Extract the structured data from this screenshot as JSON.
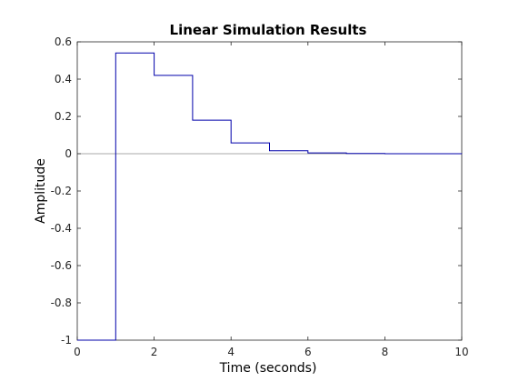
{
  "chart_data": {
    "type": "line",
    "line_style": "stairs",
    "title": "Linear Simulation Results",
    "xlabel": "Time (seconds)",
    "ylabel": "Amplitude",
    "xlim": [
      0,
      10
    ],
    "ylim": [
      -1,
      0.6
    ],
    "xticks": [
      "0",
      "2",
      "4",
      "6",
      "8",
      "10"
    ],
    "yticks": [
      "-1",
      "-0.8",
      "-0.6",
      "-0.4",
      "-0.2",
      "0",
      "0.2",
      "0.4",
      "0.6"
    ],
    "grid": false,
    "zero_line": true,
    "series": [
      {
        "color": "#0000aa",
        "x": [
          0,
          1,
          2,
          3,
          4,
          5,
          6,
          7,
          8,
          9,
          10
        ],
        "y": [
          -1,
          0.54,
          0.42,
          0.18,
          0.058,
          0.016,
          0.004,
          0.001,
          0.0003,
          0.0001,
          0
        ]
      }
    ]
  }
}
